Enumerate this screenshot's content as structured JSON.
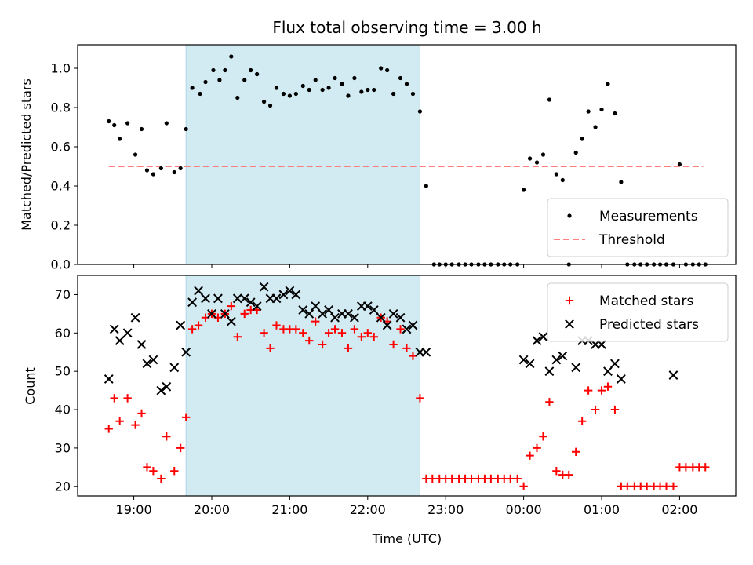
{
  "chart_data": {
    "type": "scatter",
    "title": "Flux total observing time = 3.00 h",
    "xlabel": "Time (UTC)",
    "x_tick_labels": [
      "19:00",
      "20:00",
      "21:00",
      "22:00",
      "23:00",
      "00:00",
      "01:00",
      "02:00"
    ],
    "x_tick_hours": [
      19,
      20,
      21,
      22,
      23,
      24,
      25,
      26
    ],
    "xlim": [
      18.28,
      26.72
    ],
    "shaded_span": [
      19.67,
      22.67
    ],
    "colors": {
      "shade": "#add8e6",
      "measurement": "#000000",
      "threshold": "#ff7f7f",
      "matched": "#ff0000",
      "predicted": "#000000"
    },
    "panels": [
      {
        "ylabel": "Matched/Predicted stars",
        "ylim": [
          0,
          1.12
        ],
        "y_ticks": [
          0.0,
          0.2,
          0.4,
          0.6,
          0.8,
          1.0
        ],
        "y_tick_labels": [
          "0.0",
          "0.2",
          "0.4",
          "0.6",
          "0.8",
          "1.0"
        ],
        "legend": {
          "placement": "lower-right",
          "entries": [
            "Measurements",
            "Threshold"
          ]
        },
        "threshold": {
          "name": "Threshold",
          "y": 0.5,
          "x_range": [
            18.68,
            26.3
          ]
        },
        "series": [
          {
            "name": "Measurements",
            "marker": "dot",
            "x": [
              18.68,
              18.75,
              18.82,
              18.92,
              19.02,
              19.1,
              19.17,
              19.25,
              19.35,
              19.42,
              19.52,
              19.6,
              19.67,
              19.75,
              19.85,
              19.92,
              20.02,
              20.1,
              20.17,
              20.25,
              20.33,
              20.42,
              20.5,
              20.58,
              20.67,
              20.75,
              20.83,
              20.92,
              21.0,
              21.08,
              21.17,
              21.25,
              21.33,
              21.42,
              21.5,
              21.58,
              21.67,
              21.75,
              21.83,
              21.92,
              22.0,
              22.08,
              22.17,
              22.25,
              22.33,
              22.42,
              22.5,
              22.58,
              22.67,
              22.75,
              22.85,
              22.92,
              23.0,
              23.08,
              23.17,
              23.25,
              23.33,
              23.42,
              23.5,
              23.58,
              23.67,
              23.75,
              23.83,
              23.92,
              24.0,
              24.08,
              24.17,
              24.25,
              24.33,
              24.42,
              24.5,
              24.58,
              24.67,
              24.75,
              24.83,
              24.92,
              25.0,
              25.08,
              25.17,
              25.25,
              25.33,
              25.42,
              25.5,
              25.58,
              25.67,
              25.75,
              25.83,
              25.92,
              26.0,
              26.08,
              26.17,
              26.25,
              26.33
            ],
            "y": [
              0.73,
              0.71,
              0.64,
              0.72,
              0.56,
              0.69,
              0.48,
              0.46,
              0.49,
              0.72,
              0.47,
              0.49,
              0.69,
              0.9,
              0.87,
              0.93,
              0.99,
              0.94,
              0.99,
              1.06,
              0.85,
              0.94,
              0.99,
              0.97,
              0.83,
              0.81,
              0.9,
              0.87,
              0.86,
              0.87,
              0.91,
              0.89,
              0.94,
              0.89,
              0.9,
              0.95,
              0.92,
              0.86,
              0.95,
              0.88,
              0.89,
              0.89,
              1.0,
              0.99,
              0.87,
              0.95,
              0.92,
              0.87,
              0.78,
              0.4,
              0.0,
              0.0,
              0.0,
              0.0,
              0.0,
              0.0,
              0.0,
              0.0,
              0.0,
              0.0,
              0.0,
              0.0,
              0.0,
              0.0,
              0.38,
              0.54,
              0.52,
              0.56,
              0.84,
              0.46,
              0.43,
              0.0,
              0.57,
              0.64,
              0.78,
              0.7,
              0.79,
              0.92,
              0.77,
              0.42,
              0.0,
              0.0,
              0.0,
              0.0,
              0.0,
              0.0,
              0.0,
              0.0,
              0.51,
              0.0,
              0.0,
              0.0,
              0.0
            ]
          }
        ]
      },
      {
        "ylabel": "Count",
        "ylim": [
          17.5,
          75
        ],
        "y_ticks": [
          20,
          30,
          40,
          50,
          60,
          70
        ],
        "y_tick_labels": [
          "20",
          "30",
          "40",
          "50",
          "60",
          "70"
        ],
        "legend": {
          "placement": "upper-right",
          "entries": [
            "Matched stars",
            "Predicted stars"
          ]
        },
        "series": [
          {
            "name": "Matched stars",
            "marker": "plus",
            "x": [
              18.68,
              18.75,
              18.82,
              18.92,
              19.02,
              19.1,
              19.17,
              19.25,
              19.35,
              19.42,
              19.52,
              19.6,
              19.67,
              19.75,
              19.83,
              19.92,
              20.0,
              20.08,
              20.17,
              20.25,
              20.33,
              20.42,
              20.5,
              20.58,
              20.67,
              20.75,
              20.83,
              20.92,
              21.0,
              21.08,
              21.17,
              21.25,
              21.33,
              21.42,
              21.5,
              21.58,
              21.67,
              21.75,
              21.83,
              21.92,
              22.0,
              22.08,
              22.17,
              22.25,
              22.33,
              22.42,
              22.5,
              22.58,
              22.67,
              22.75,
              22.83,
              22.92,
              23.0,
              23.08,
              23.17,
              23.25,
              23.33,
              23.42,
              23.5,
              23.58,
              23.67,
              23.75,
              23.83,
              23.92,
              24.0,
              24.08,
              24.17,
              24.25,
              24.33,
              24.42,
              24.5,
              24.58,
              24.67,
              24.75,
              24.83,
              24.92,
              25.0,
              25.08,
              25.17,
              25.25,
              25.33,
              25.42,
              25.5,
              25.58,
              25.67,
              25.75,
              25.83,
              25.92,
              26.0,
              26.08,
              26.17,
              26.25,
              26.33
            ],
            "y": [
              35,
              43,
              37,
              43,
              36,
              39,
              25,
              24,
              22,
              33,
              24,
              30,
              38,
              61,
              62,
              64,
              65,
              64,
              65,
              67,
              59,
              65,
              66,
              66,
              60,
              56,
              62,
              61,
              61,
              61,
              60,
              58,
              63,
              57,
              60,
              61,
              60,
              56,
              61,
              59,
              60,
              59,
              64,
              63,
              57,
              61,
              56,
              54,
              43,
              22,
              22,
              22,
              22,
              22,
              22,
              22,
              22,
              22,
              22,
              22,
              22,
              22,
              22,
              22,
              20,
              28,
              30,
              33,
              42,
              24,
              23,
              23,
              29,
              37,
              45,
              40,
              45,
              46,
              40,
              20,
              20,
              20,
              20,
              20,
              20,
              20,
              20,
              20,
              25,
              25,
              25,
              25,
              25
            ]
          },
          {
            "name": "Predicted stars",
            "marker": "x",
            "x": [
              18.68,
              18.75,
              18.82,
              18.92,
              19.02,
              19.1,
              19.17,
              19.25,
              19.35,
              19.42,
              19.52,
              19.6,
              19.67,
              19.75,
              19.83,
              19.92,
              20.0,
              20.08,
              20.17,
              20.25,
              20.33,
              20.42,
              20.5,
              20.58,
              20.67,
              20.75,
              20.83,
              20.92,
              21.0,
              21.08,
              21.17,
              21.25,
              21.33,
              21.42,
              21.5,
              21.58,
              21.67,
              21.75,
              21.83,
              21.92,
              22.0,
              22.08,
              22.17,
              22.25,
              22.33,
              22.42,
              22.5,
              22.58,
              22.67,
              22.75,
              24.0,
              24.08,
              24.17,
              24.25,
              24.33,
              24.42,
              24.5,
              24.67,
              24.75,
              24.83,
              24.92,
              25.0,
              25.08,
              25.17,
              25.25,
              25.92
            ],
            "y": [
              48,
              61,
              58,
              60,
              64,
              57,
              52,
              53,
              45,
              46,
              51,
              62,
              55,
              68,
              71,
              69,
              65,
              69,
              65,
              63,
              69,
              69,
              68,
              67,
              72,
              69,
              69,
              70,
              71,
              70,
              66,
              65,
              67,
              65,
              66,
              64,
              65,
              65,
              64,
              67,
              67,
              66,
              64,
              62,
              65,
              64,
              61,
              62,
              55,
              55,
              53,
              52,
              58,
              59,
              50,
              53,
              54,
              51,
              58,
              58,
              57,
              57,
              50,
              52,
              48,
              49
            ]
          }
        ]
      }
    ]
  }
}
